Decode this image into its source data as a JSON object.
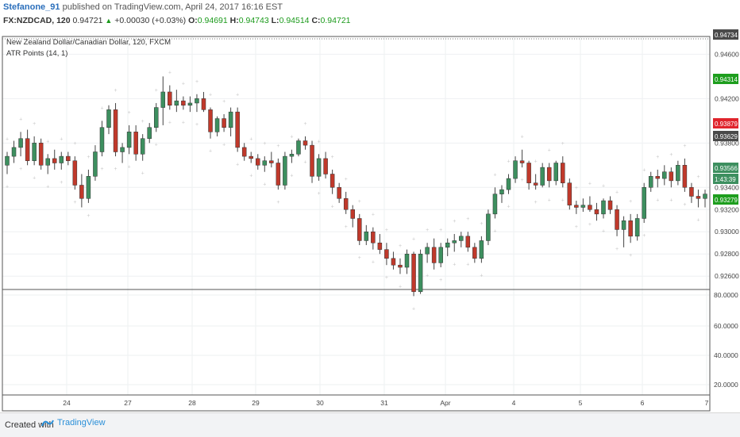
{
  "header": {
    "user": "Stefanone_91",
    "published": "published on TradingView.com, April 24, 2017 16:16 EST",
    "symbol": "FX:NZDCAD, 120",
    "last": "0.94721",
    "change": "+0.00030 (+0.03%)",
    "o_label": "O:",
    "o": "0.94691",
    "h_label": "H:",
    "h": "0.94743",
    "l_label": "L:",
    "l": "0.94514",
    "c_label": "C:",
    "c": "0.94721"
  },
  "legend": {
    "title": "New Zealand Dollar/Canadian Dollar, 120, FXCM",
    "indicator": "ATR Points (14, 1)"
  },
  "footer": {
    "created": "Created with",
    "brand": "TradingView"
  },
  "colors": {
    "up": "#3d8f5f",
    "down": "#c0392b",
    "green_tag": "#1e9e1e",
    "red_tag": "#e0242c",
    "dark_tag": "#4a4a4a",
    "dots": "#c9c9c9",
    "grid": "#eef0f2"
  },
  "chart_data": {
    "type": "candlestick",
    "title": "New Zealand Dollar/Canadian Dollar, 120, FXCM",
    "y_axis": {
      "ticks": [
        "0.94600",
        "0.94200",
        "0.93800",
        "0.93400",
        "0.93200",
        "0.93000",
        "0.92800",
        "0.92600"
      ],
      "range": [
        0.9248,
        0.9476
      ]
    },
    "x_axis": {
      "ticks": [
        "24",
        "27",
        "28",
        "29",
        "30",
        "31",
        "Apr",
        "4",
        "5",
        "6",
        "7"
      ]
    },
    "price_tags": [
      {
        "text": "0.94734",
        "style": "dark"
      },
      {
        "text": "0.94314",
        "style": "green"
      },
      {
        "text": "0.93879",
        "style": "red"
      },
      {
        "text": "0.93629",
        "style": "dark"
      },
      {
        "text": "0.93566",
        "style": "green2"
      },
      {
        "text": "1:43:39",
        "style": "green2"
      },
      {
        "text": "0.93279",
        "style": "green"
      }
    ],
    "candles": [
      [
        0.936,
        0.9372,
        0.9352,
        0.9368
      ],
      [
        0.9368,
        0.9382,
        0.9362,
        0.9376
      ],
      [
        0.9376,
        0.939,
        0.9368,
        0.9384
      ],
      [
        0.9384,
        0.9392,
        0.936,
        0.9364
      ],
      [
        0.9364,
        0.9386,
        0.936,
        0.938
      ],
      [
        0.938,
        0.9384,
        0.9356,
        0.936
      ],
      [
        0.936,
        0.937,
        0.9352,
        0.9366
      ],
      [
        0.9366,
        0.9374,
        0.9356,
        0.9362
      ],
      [
        0.9362,
        0.9372,
        0.9356,
        0.9368
      ],
      [
        0.9368,
        0.9372,
        0.936,
        0.9364
      ],
      [
        0.9364,
        0.9368,
        0.9338,
        0.9342
      ],
      [
        0.9342,
        0.9352,
        0.9322,
        0.933
      ],
      [
        0.933,
        0.9356,
        0.9326,
        0.935
      ],
      [
        0.935,
        0.9378,
        0.9346,
        0.9372
      ],
      [
        0.9372,
        0.94,
        0.9368,
        0.9394
      ],
      [
        0.9394,
        0.9414,
        0.9388,
        0.941
      ],
      [
        0.941,
        0.9416,
        0.9368,
        0.9372
      ],
      [
        0.9372,
        0.938,
        0.9362,
        0.9376
      ],
      [
        0.9376,
        0.9396,
        0.937,
        0.939
      ],
      [
        0.939,
        0.9396,
        0.9364,
        0.937
      ],
      [
        0.937,
        0.9388,
        0.9364,
        0.9384
      ],
      [
        0.9384,
        0.9398,
        0.938,
        0.9394
      ],
      [
        0.9394,
        0.9416,
        0.939,
        0.9412
      ],
      [
        0.9412,
        0.944,
        0.9396,
        0.9426
      ],
      [
        0.9426,
        0.9432,
        0.941,
        0.9414
      ],
      [
        0.9414,
        0.9428,
        0.9408,
        0.9418
      ],
      [
        0.9418,
        0.9422,
        0.941,
        0.9414
      ],
      [
        0.9414,
        0.9422,
        0.9408,
        0.9416
      ],
      [
        0.9416,
        0.9424,
        0.9408,
        0.942
      ],
      [
        0.942,
        0.9426,
        0.9408,
        0.941
      ],
      [
        0.941,
        0.9412,
        0.9384,
        0.939
      ],
      [
        0.939,
        0.9404,
        0.9386,
        0.9402
      ],
      [
        0.9402,
        0.9406,
        0.939,
        0.9394
      ],
      [
        0.9394,
        0.9412,
        0.9386,
        0.9408
      ],
      [
        0.9408,
        0.9412,
        0.9372,
        0.9376
      ],
      [
        0.9376,
        0.938,
        0.9364,
        0.9368
      ],
      [
        0.9368,
        0.9372,
        0.9362,
        0.9366
      ],
      [
        0.9366,
        0.937,
        0.9356,
        0.936
      ],
      [
        0.936,
        0.9368,
        0.9354,
        0.9364
      ],
      [
        0.9364,
        0.9372,
        0.9358,
        0.9362
      ],
      [
        0.9362,
        0.9366,
        0.9338,
        0.9342
      ],
      [
        0.9342,
        0.9372,
        0.9338,
        0.9368
      ],
      [
        0.9368,
        0.9374,
        0.9362,
        0.937
      ],
      [
        0.937,
        0.9384,
        0.9368,
        0.9382
      ],
      [
        0.9382,
        0.9386,
        0.9374,
        0.9378
      ],
      [
        0.9378,
        0.9382,
        0.9344,
        0.935
      ],
      [
        0.935,
        0.937,
        0.9346,
        0.9366
      ],
      [
        0.9366,
        0.9372,
        0.9348,
        0.9352
      ],
      [
        0.9352,
        0.9356,
        0.9334,
        0.934
      ],
      [
        0.934,
        0.9344,
        0.9326,
        0.933
      ],
      [
        0.933,
        0.9336,
        0.9316,
        0.932
      ],
      [
        0.932,
        0.9324,
        0.9304,
        0.9312
      ],
      [
        0.9312,
        0.9316,
        0.9288,
        0.9292
      ],
      [
        0.9292,
        0.9306,
        0.9288,
        0.93
      ],
      [
        0.93,
        0.9304,
        0.9284,
        0.929
      ],
      [
        0.929,
        0.9298,
        0.928,
        0.9284
      ],
      [
        0.9284,
        0.929,
        0.927,
        0.9276
      ],
      [
        0.9276,
        0.9282,
        0.9266,
        0.927
      ],
      [
        0.927,
        0.9276,
        0.9262,
        0.9268
      ],
      [
        0.9268,
        0.9284,
        0.9262,
        0.928
      ],
      [
        0.928,
        0.9282,
        0.9242,
        0.9246
      ],
      [
        0.9246,
        0.9284,
        0.9244,
        0.928
      ],
      [
        0.928,
        0.929,
        0.9272,
        0.9286
      ],
      [
        0.9286,
        0.9294,
        0.9266,
        0.9272
      ],
      [
        0.9272,
        0.929,
        0.9268,
        0.9286
      ],
      [
        0.9286,
        0.9294,
        0.9278,
        0.929
      ],
      [
        0.929,
        0.9298,
        0.9282,
        0.9292
      ],
      [
        0.9292,
        0.93,
        0.9286,
        0.9296
      ],
      [
        0.9296,
        0.93,
        0.9282,
        0.9286
      ],
      [
        0.9286,
        0.929,
        0.9272,
        0.9276
      ],
      [
        0.9276,
        0.9296,
        0.9272,
        0.9292
      ],
      [
        0.9292,
        0.932,
        0.9288,
        0.9316
      ],
      [
        0.9316,
        0.934,
        0.9312,
        0.9334
      ],
      [
        0.9334,
        0.9342,
        0.9326,
        0.9338
      ],
      [
        0.9338,
        0.9352,
        0.9334,
        0.9348
      ],
      [
        0.9348,
        0.9368,
        0.9344,
        0.9364
      ],
      [
        0.9364,
        0.9374,
        0.9358,
        0.9362
      ],
      [
        0.9362,
        0.9364,
        0.9338,
        0.9344
      ],
      [
        0.9344,
        0.9352,
        0.9338,
        0.9342
      ],
      [
        0.9342,
        0.9362,
        0.934,
        0.9358
      ],
      [
        0.9358,
        0.9362,
        0.934,
        0.9346
      ],
      [
        0.9346,
        0.9364,
        0.9342,
        0.9362
      ],
      [
        0.9362,
        0.9368,
        0.934,
        0.9344
      ],
      [
        0.9344,
        0.9348,
        0.932,
        0.9324
      ],
      [
        0.9324,
        0.9328,
        0.9316,
        0.9322
      ],
      [
        0.9322,
        0.933,
        0.9318,
        0.9324
      ],
      [
        0.9324,
        0.9332,
        0.9318,
        0.932
      ],
      [
        0.932,
        0.9326,
        0.931,
        0.9316
      ],
      [
        0.9316,
        0.933,
        0.9312,
        0.9328
      ],
      [
        0.9328,
        0.9332,
        0.9316,
        0.932
      ],
      [
        0.932,
        0.9324,
        0.9296,
        0.9302
      ],
      [
        0.9302,
        0.9314,
        0.9286,
        0.931
      ],
      [
        0.931,
        0.9316,
        0.929,
        0.9296
      ],
      [
        0.9296,
        0.9316,
        0.9292,
        0.9312
      ],
      [
        0.9312,
        0.9344,
        0.9308,
        0.934
      ],
      [
        0.934,
        0.9354,
        0.9336,
        0.935
      ],
      [
        0.935,
        0.9356,
        0.934,
        0.9348
      ],
      [
        0.9348,
        0.936,
        0.9342,
        0.9354
      ],
      [
        0.9354,
        0.9358,
        0.934,
        0.9346
      ],
      [
        0.9346,
        0.9364,
        0.9342,
        0.936
      ],
      [
        0.936,
        0.9366,
        0.9336,
        0.934
      ],
      [
        0.934,
        0.9344,
        0.9326,
        0.9332
      ],
      [
        0.9332,
        0.9338,
        0.9322,
        0.933
      ],
      [
        0.933,
        0.9338,
        0.9322,
        0.9334
      ]
    ]
  },
  "lower_pane": {
    "ticks": [
      "80.0000",
      "60.0000",
      "40.0000",
      "20.0000"
    ]
  }
}
